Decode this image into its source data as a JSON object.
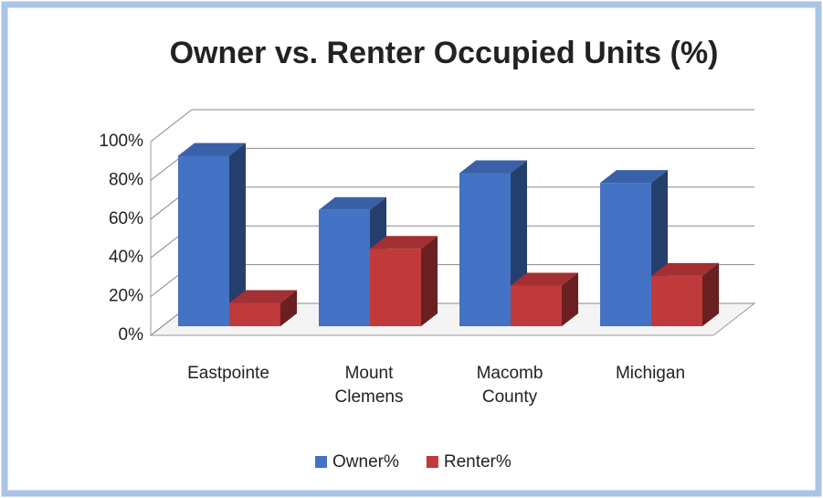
{
  "chart_data": {
    "type": "bar3d",
    "title": "Owner vs. Renter Occupied Units (%)",
    "categories": [
      "Eastpointe",
      "Mount Clemens",
      "Macomb County",
      "Michigan"
    ],
    "series": [
      {
        "name": "Owner%",
        "color": "#4472c4",
        "values": [
          88,
          60,
          79,
          74
        ]
      },
      {
        "name": "Renter%",
        "color": "#c0393b",
        "values": [
          12,
          40,
          21,
          26
        ]
      }
    ],
    "ylim": [
      0,
      100
    ],
    "yticks": [
      {
        "value": 0,
        "label": "0%"
      },
      {
        "value": 20,
        "label": "20%"
      },
      {
        "value": 40,
        "label": "40%"
      },
      {
        "value": 60,
        "label": "60%"
      },
      {
        "value": 80,
        "label": "80%"
      },
      {
        "value": 100,
        "label": "100%"
      }
    ],
    "grid": true,
    "legend": "bottom"
  }
}
